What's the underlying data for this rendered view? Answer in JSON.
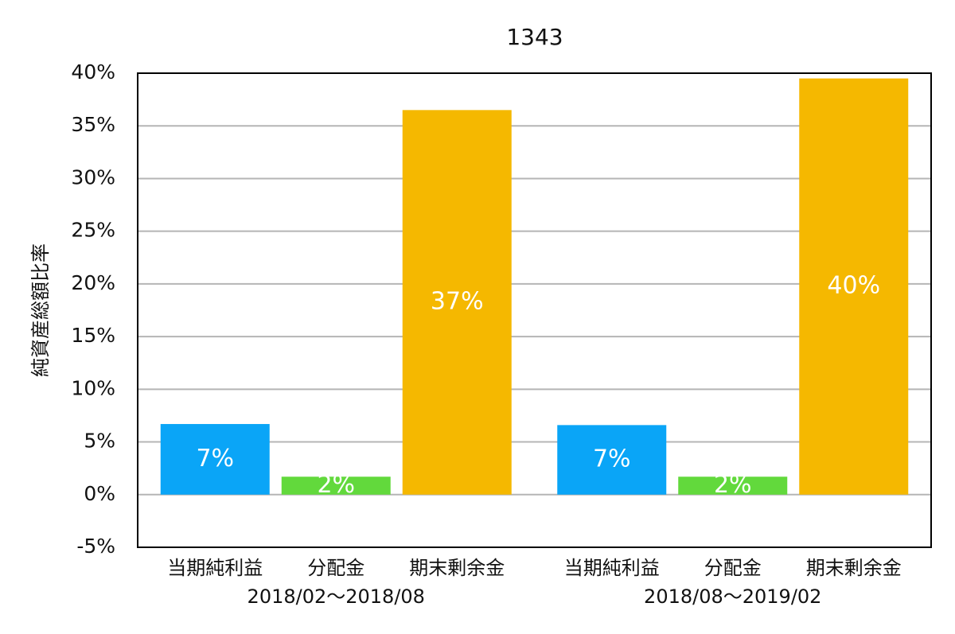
{
  "chart_data": {
    "type": "bar",
    "title": "1343",
    "y_label": "純資産総額比率",
    "categories": [
      "当期純利益",
      "分配金",
      "期末剰余金",
      "当期純利益",
      "分配金",
      "期末剰余金"
    ],
    "groups": [
      "2018/02〜2018/08",
      "2018/08〜2019/02"
    ],
    "values": [
      6.7,
      1.7,
      36.5,
      6.6,
      1.7,
      39.5
    ],
    "value_labels": [
      "7%",
      "2%",
      "37%",
      "7%",
      "2%",
      "40%"
    ],
    "colors": [
      "#0aa5f7",
      "#62d93c",
      "#f5b800",
      "#0aa5f7",
      "#62d93c",
      "#f5b800"
    ],
    "ylim": [
      -5,
      40
    ],
    "yticks": [
      {
        "value": -5,
        "label": "-5%"
      },
      {
        "value": 0,
        "label": "0%"
      },
      {
        "value": 5,
        "label": "5%"
      },
      {
        "value": 10,
        "label": "10%"
      },
      {
        "value": 15,
        "label": "15%"
      },
      {
        "value": 20,
        "label": "20%"
      },
      {
        "value": 25,
        "label": "25%"
      },
      {
        "value": 30,
        "label": "30%"
      },
      {
        "value": 35,
        "label": "35%"
      },
      {
        "value": 40,
        "label": "40%"
      }
    ],
    "grid": true
  }
}
